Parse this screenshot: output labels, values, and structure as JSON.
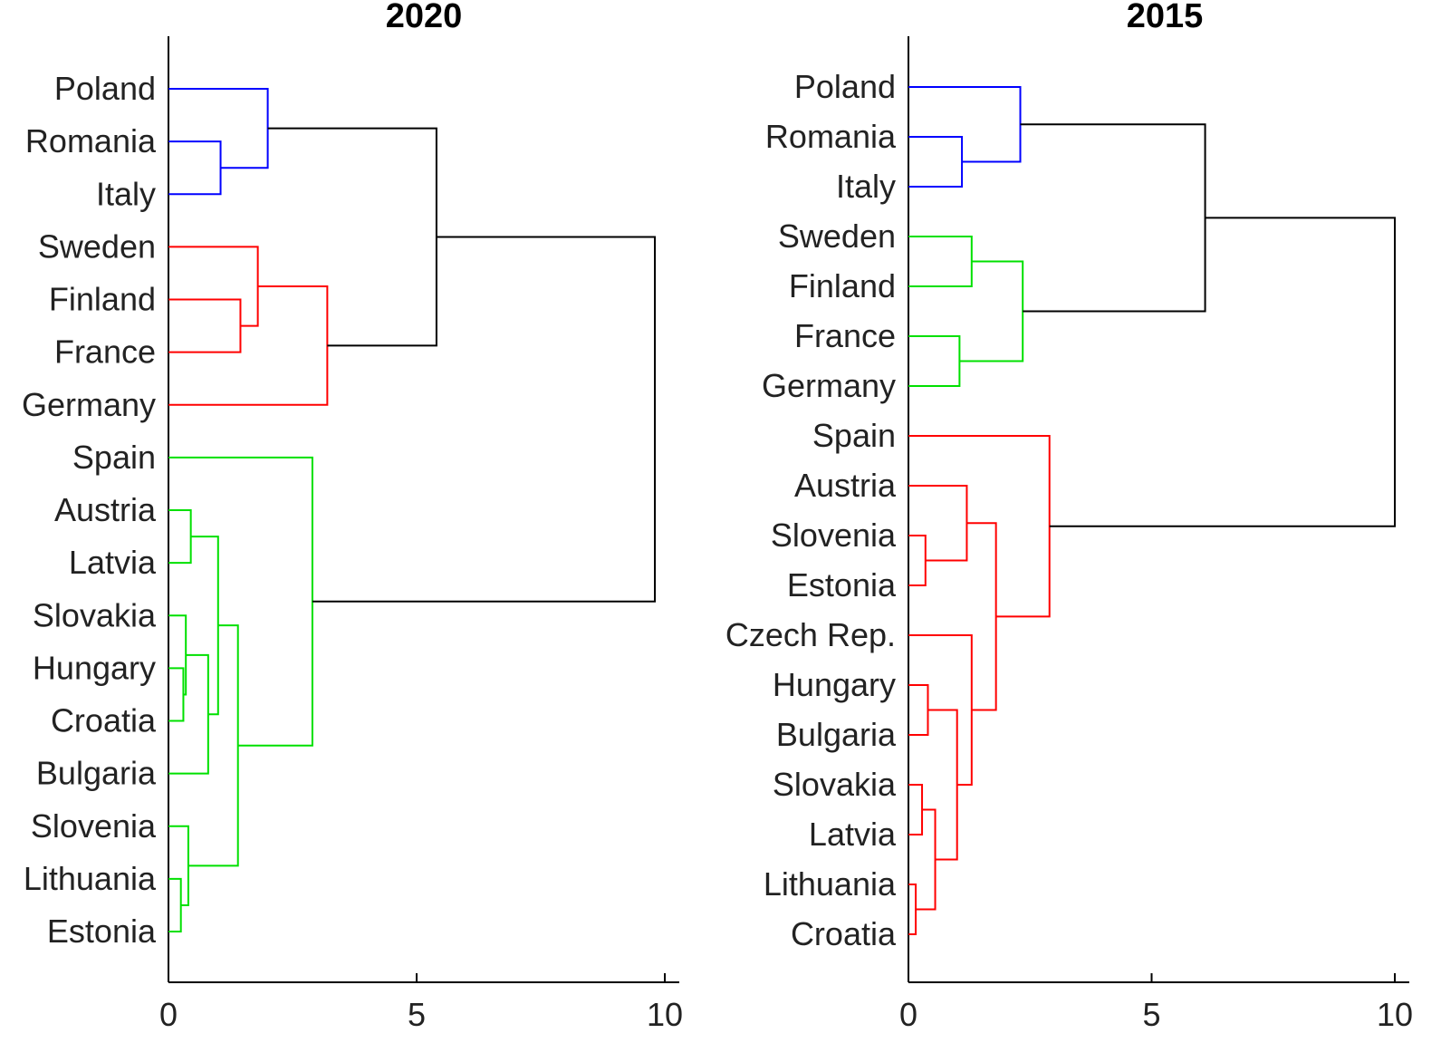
{
  "chart_data": [
    {
      "type": "dendrogram",
      "title": "2020",
      "xlim": [
        0,
        10
      ],
      "xticks": [
        0,
        5,
        10
      ],
      "colors": {
        "blue": "#0000ff",
        "red": "#ff0000",
        "green": "#00e000",
        "black": "#000000"
      },
      "leaves": [
        "Poland",
        "Romania",
        "Italy",
        "Sweden",
        "Finland",
        "France",
        "Germany",
        "Spain",
        "Austria",
        "Latvia",
        "Slovakia",
        "Hungary",
        "Croatia",
        "Bulgaria",
        "Slovenia",
        "Lithuania",
        "Estonia"
      ],
      "links": [
        {
          "a": "Romania",
          "b": "Italy",
          "h": 1.05,
          "color": "blue"
        },
        {
          "a": "Poland",
          "b": 0,
          "h": 2.0,
          "color": "blue"
        },
        {
          "a": "Finland",
          "b": "France",
          "h": 1.45,
          "color": "red"
        },
        {
          "a": "Sweden",
          "b": 2,
          "h": 1.8,
          "color": "red"
        },
        {
          "a": 3,
          "b": "Germany",
          "h": 3.2,
          "color": "red"
        },
        {
          "a": 1,
          "b": 4,
          "h": 5.4,
          "color": "black"
        },
        {
          "a": "Austria",
          "b": "Latvia",
          "h": 0.45,
          "color": "green"
        },
        {
          "a": "Hungary",
          "b": "Croatia",
          "h": 0.3,
          "color": "green"
        },
        {
          "a": "Slovakia",
          "b": 7,
          "h": 0.35,
          "color": "green"
        },
        {
          "a": 8,
          "b": "Bulgaria",
          "h": 0.8,
          "color": "green"
        },
        {
          "a": 6,
          "b": 9,
          "h": 1.0,
          "color": "green"
        },
        {
          "a": "Lithuania",
          "b": "Estonia",
          "h": 0.25,
          "color": "green"
        },
        {
          "a": "Slovenia",
          "b": 11,
          "h": 0.4,
          "color": "green"
        },
        {
          "a": 10,
          "b": 12,
          "h": 1.4,
          "color": "green"
        },
        {
          "a": "Spain",
          "b": 13,
          "h": 2.9,
          "color": "green"
        },
        {
          "a": 5,
          "b": 14,
          "h": 9.8,
          "color": "black"
        }
      ]
    },
    {
      "type": "dendrogram",
      "title": "2015",
      "xlim": [
        0,
        10
      ],
      "xticks": [
        0,
        5,
        10
      ],
      "colors": {
        "blue": "#0000ff",
        "red": "#ff0000",
        "green": "#00e000",
        "black": "#000000"
      },
      "leaves": [
        "Poland",
        "Romania",
        "Italy",
        "Sweden",
        "Finland",
        "France",
        "Germany",
        "Spain",
        "Austria",
        "Slovenia",
        "Estonia",
        "Czech Rep.",
        "Hungary",
        "Bulgaria",
        "Slovakia",
        "Latvia",
        "Lithuania",
        "Croatia"
      ],
      "links": [
        {
          "a": "Romania",
          "b": "Italy",
          "h": 1.1,
          "color": "blue"
        },
        {
          "a": "Poland",
          "b": 0,
          "h": 2.3,
          "color": "blue"
        },
        {
          "a": "Sweden",
          "b": "Finland",
          "h": 1.3,
          "color": "green"
        },
        {
          "a": "France",
          "b": "Germany",
          "h": 1.05,
          "color": "green"
        },
        {
          "a": 2,
          "b": 3,
          "h": 2.35,
          "color": "green"
        },
        {
          "a": 1,
          "b": 4,
          "h": 6.1,
          "color": "black"
        },
        {
          "a": "Slovenia",
          "b": "Estonia",
          "h": 0.35,
          "color": "red"
        },
        {
          "a": "Austria",
          "b": 6,
          "h": 1.2,
          "color": "red"
        },
        {
          "a": "Hungary",
          "b": "Bulgaria",
          "h": 0.4,
          "color": "red"
        },
        {
          "a": "Slovakia",
          "b": "Latvia",
          "h": 0.28,
          "color": "red"
        },
        {
          "a": "Lithuania",
          "b": "Croatia",
          "h": 0.15,
          "color": "red"
        },
        {
          "a": 9,
          "b": 10,
          "h": 0.55,
          "color": "red"
        },
        {
          "a": 8,
          "b": 11,
          "h": 1.0,
          "color": "red"
        },
        {
          "a": "Czech Rep.",
          "b": 12,
          "h": 1.3,
          "color": "red"
        },
        {
          "a": 7,
          "b": 13,
          "h": 1.8,
          "color": "red"
        },
        {
          "a": "Spain",
          "b": 14,
          "h": 2.9,
          "color": "red"
        },
        {
          "a": 5,
          "b": 15,
          "h": 10.0,
          "color": "black"
        }
      ]
    }
  ]
}
